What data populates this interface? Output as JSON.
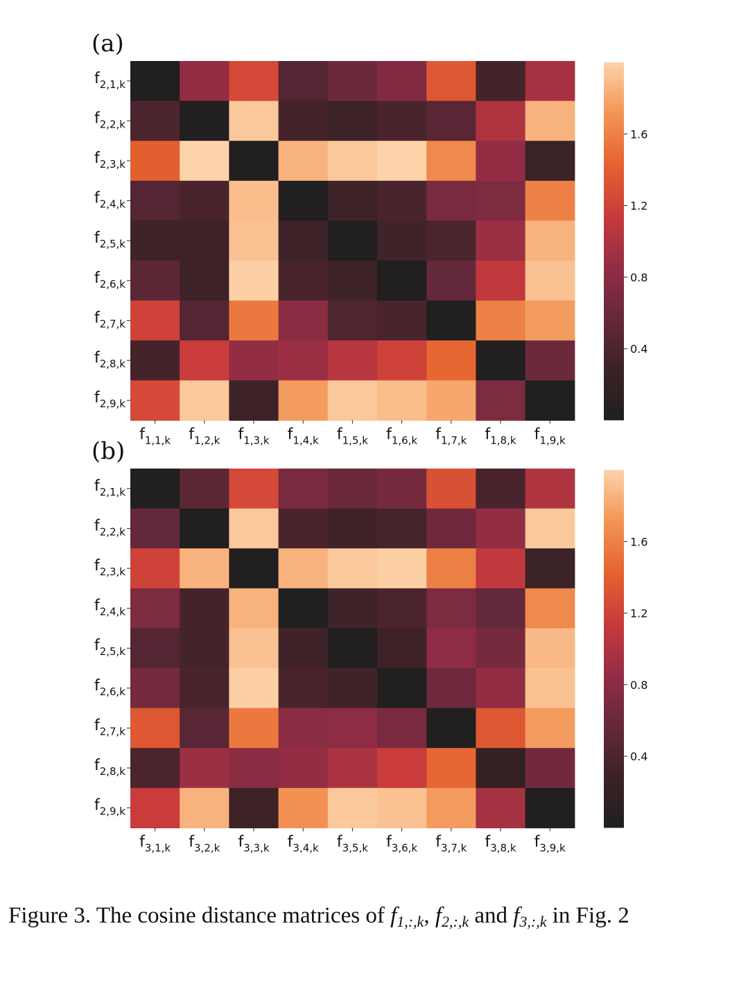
{
  "chart_data": [
    {
      "type": "heatmap",
      "panel_label": "(a)",
      "y_ticks": [
        {
          "base": "f",
          "sub": "2,1,k"
        },
        {
          "base": "f",
          "sub": "2,2,k"
        },
        {
          "base": "f",
          "sub": "2,3,k"
        },
        {
          "base": "f",
          "sub": "2,4,k"
        },
        {
          "base": "f",
          "sub": "2,5,k"
        },
        {
          "base": "f",
          "sub": "2,6,k"
        },
        {
          "base": "f",
          "sub": "2,7,k"
        },
        {
          "base": "f",
          "sub": "2,8,k"
        },
        {
          "base": "f",
          "sub": "2,9,k"
        }
      ],
      "x_ticks": [
        {
          "base": "f",
          "sub": "1,1,k"
        },
        {
          "base": "f",
          "sub": "1,2,k"
        },
        {
          "base": "f",
          "sub": "1,3,k"
        },
        {
          "base": "f",
          "sub": "1,4,k"
        },
        {
          "base": "f",
          "sub": "1,5,k"
        },
        {
          "base": "f",
          "sub": "1,6,k"
        },
        {
          "base": "f",
          "sub": "1,7,k"
        },
        {
          "base": "f",
          "sub": "1,8,k"
        },
        {
          "base": "f",
          "sub": "1,9,k"
        }
      ],
      "values": [
        [
          0.02,
          0.85,
          1.25,
          0.45,
          0.6,
          0.75,
          1.35,
          0.35,
          0.95
        ],
        [
          0.4,
          0.02,
          1.95,
          0.35,
          0.3,
          0.38,
          0.48,
          1.0,
          1.85
        ],
        [
          1.4,
          2.0,
          0.02,
          1.85,
          1.95,
          2.0,
          1.65,
          0.85,
          0.28
        ],
        [
          0.45,
          0.38,
          1.9,
          0.02,
          0.32,
          0.38,
          0.7,
          0.72,
          1.6
        ],
        [
          0.32,
          0.3,
          1.92,
          0.32,
          0.02,
          0.32,
          0.4,
          0.9,
          1.85
        ],
        [
          0.5,
          0.3,
          1.98,
          0.38,
          0.3,
          0.02,
          0.55,
          1.1,
          1.92
        ],
        [
          1.2,
          0.45,
          1.55,
          0.8,
          0.42,
          0.38,
          0.02,
          1.6,
          1.75
        ],
        [
          0.35,
          1.15,
          0.85,
          0.9,
          1.05,
          1.2,
          1.45,
          0.02,
          0.6
        ],
        [
          1.25,
          1.95,
          0.3,
          1.75,
          1.95,
          1.9,
          1.8,
          0.72,
          0.02
        ]
      ],
      "colorbar": {
        "ticks": [
          0.4,
          0.8,
          1.2,
          1.6
        ],
        "range": [
          0.0,
          2.0
        ],
        "colormap": [
          "#1f1f1f",
          "#3b2226",
          "#66283a",
          "#932d44",
          "#c93a3c",
          "#e5632f",
          "#f39454",
          "#fdd3aa"
        ]
      }
    },
    {
      "type": "heatmap",
      "panel_label": "(b)",
      "y_ticks": [
        {
          "base": "f",
          "sub": "2,1,k"
        },
        {
          "base": "f",
          "sub": "2,2,k"
        },
        {
          "base": "f",
          "sub": "2,3,k"
        },
        {
          "base": "f",
          "sub": "2,4,k"
        },
        {
          "base": "f",
          "sub": "2,5,k"
        },
        {
          "base": "f",
          "sub": "2,6,k"
        },
        {
          "base": "f",
          "sub": "2,7,k"
        },
        {
          "base": "f",
          "sub": "2,8,k"
        },
        {
          "base": "f",
          "sub": "2,9,k"
        }
      ],
      "x_ticks": [
        {
          "base": "f",
          "sub": "3,1,k"
        },
        {
          "base": "f",
          "sub": "3,2,k"
        },
        {
          "base": "f",
          "sub": "3,3,k"
        },
        {
          "base": "f",
          "sub": "3,4,k"
        },
        {
          "base": "f",
          "sub": "3,5,k"
        },
        {
          "base": "f",
          "sub": "3,6,k"
        },
        {
          "base": "f",
          "sub": "3,7,k"
        },
        {
          "base": "f",
          "sub": "3,8,k"
        },
        {
          "base": "f",
          "sub": "3,9,k"
        }
      ],
      "values": [
        [
          0.02,
          0.5,
          1.25,
          0.7,
          0.6,
          0.68,
          1.3,
          0.38,
          1.0
        ],
        [
          0.55,
          0.02,
          1.95,
          0.38,
          0.32,
          0.36,
          0.62,
          0.85,
          1.95
        ],
        [
          1.2,
          1.85,
          0.02,
          1.85,
          1.95,
          1.98,
          1.6,
          1.1,
          0.28
        ],
        [
          0.72,
          0.35,
          1.85,
          0.02,
          0.32,
          0.4,
          0.72,
          0.55,
          1.65
        ],
        [
          0.45,
          0.35,
          1.92,
          0.32,
          0.02,
          0.3,
          0.82,
          0.68,
          1.88
        ],
        [
          0.68,
          0.38,
          1.98,
          0.38,
          0.32,
          0.02,
          0.62,
          0.85,
          1.92
        ],
        [
          1.35,
          0.48,
          1.55,
          0.8,
          0.82,
          0.7,
          0.02,
          1.35,
          1.75
        ],
        [
          0.4,
          0.9,
          0.8,
          0.85,
          0.98,
          1.15,
          1.45,
          0.22,
          0.65
        ],
        [
          1.15,
          1.85,
          0.3,
          1.7,
          1.95,
          1.92,
          1.75,
          0.95,
          0.02
        ]
      ],
      "colorbar": {
        "ticks": [
          0.4,
          0.8,
          1.2,
          1.6
        ],
        "range": [
          0.0,
          2.0
        ],
        "colormap": [
          "#1f1f1f",
          "#3b2226",
          "#66283a",
          "#932d44",
          "#c93a3c",
          "#e5632f",
          "#f39454",
          "#fdd3aa"
        ]
      }
    }
  ],
  "caption": {
    "prefix": "Figure 3. The cosine distance matrices of ",
    "m1_base": "f",
    "m1_sub": "1,:,k",
    "sep1": ", ",
    "m2_base": "f",
    "m2_sub": "2,:,k",
    "sep2": " and ",
    "m3_base": "f",
    "m3_sub": "3,:,k",
    "suffix": " in Fig. 2"
  }
}
